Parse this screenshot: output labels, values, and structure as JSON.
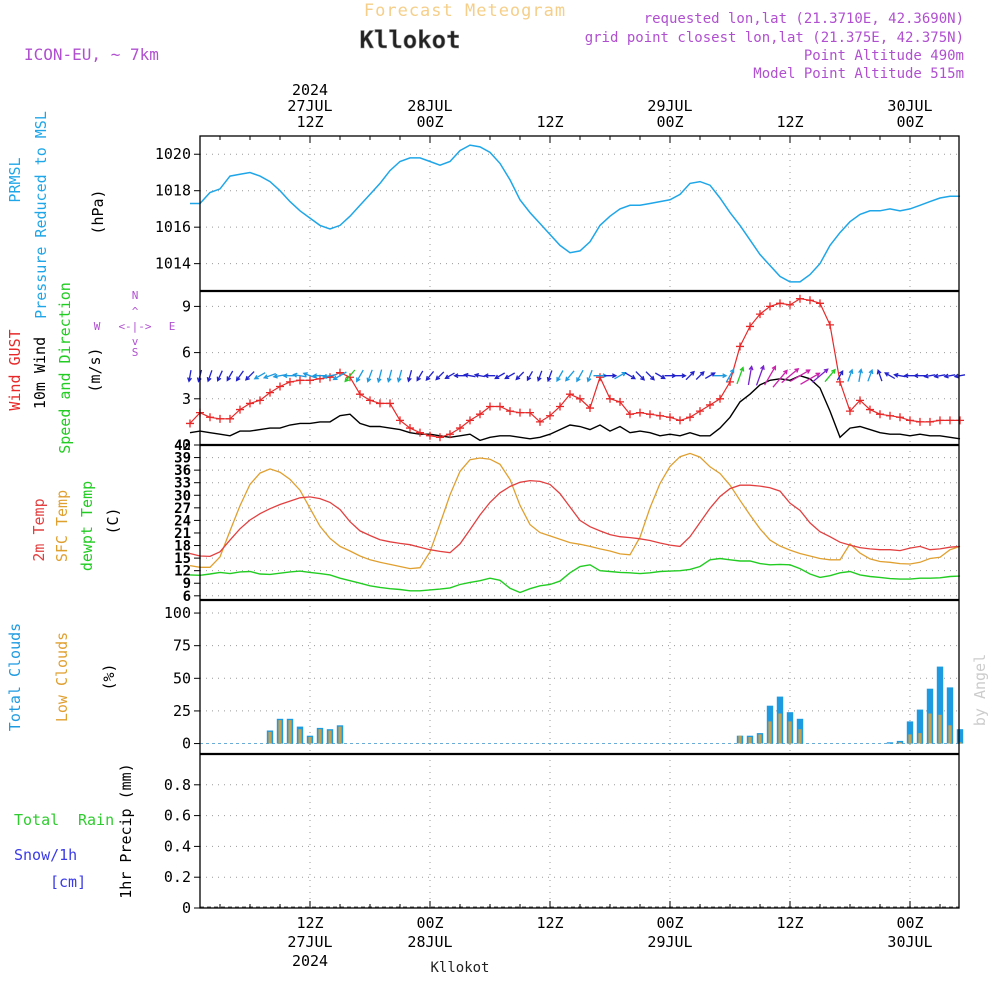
{
  "header": {
    "title": "Forecast Meteogram",
    "location": "Kllokot",
    "model": "ICON-EU, ~ 7km",
    "requested": "requested lon,lat (21.3710E, 42.3690N)",
    "gridpoint": "grid point closest lon,lat (21.375E, 42.375N)",
    "point_alt": "Point Altitude 490m",
    "model_alt": "Model Point Altitude 515m",
    "footer_location": "Kllokot",
    "watermark": "by Angel"
  },
  "time_axis": {
    "start_hour": 0,
    "end_hour": 78,
    "major": [
      {
        "hour": 12,
        "top": [
          "2024",
          "27JUL",
          "12Z"
        ],
        "bottom": [
          "12Z",
          "27JUL",
          "2024"
        ]
      },
      {
        "hour": 24,
        "top": [
          "28JUL",
          "00Z"
        ],
        "bottom": [
          "00Z",
          "28JUL"
        ]
      },
      {
        "hour": 36,
        "top": [
          "12Z"
        ],
        "bottom": [
          "12Z"
        ]
      },
      {
        "hour": 48,
        "top": [
          "29JUL",
          "00Z"
        ],
        "bottom": [
          "00Z",
          "29JUL"
        ]
      },
      {
        "hour": 60,
        "top": [
          "12Z"
        ],
        "bottom": [
          "12Z"
        ]
      },
      {
        "hour": 72,
        "top": [
          "30JUL",
          "00Z"
        ],
        "bottom": [
          "00Z",
          "30JUL"
        ]
      }
    ]
  },
  "legends": {
    "pressure": [
      "PRMSL",
      "Pressure Reduced to MSL"
    ],
    "pressure_unit": "(hPa)",
    "wind_gust": "Wind GUST",
    "wind_10m": "10m Wind",
    "wind_dir": "Speed and Direction",
    "wind_unit": "(m/s)",
    "compass_n": "N",
    "compass_s": "S",
    "compass_w": "W",
    "compass_e": "E",
    "compass_ns": "^|v",
    "compass_we": "<-|->",
    "temp_2m": "2m Temp",
    "temp_sfc": "SFC Temp",
    "temp_dew": "dewpt Temp",
    "temp_unit": "(C)",
    "cloud_total": "Total Clouds",
    "cloud_low": "Low Clouds",
    "cloud_unit": "(%)",
    "rain_total": "Total",
    "rain_rain": "Rain",
    "rain_snow": "Snow/1h",
    "rain_snow_unit": "[cm]",
    "precip_unit": "1hr Precip (mm)"
  },
  "colors": {
    "pressure": "#1ea6e8",
    "gust": "#e82828",
    "wind": "#000000",
    "t2m": "#e24040",
    "tsfc": "#e0a030",
    "tdew": "#22cc22",
    "total_cloud": "#1e9ae0",
    "low_cloud": "#c8a050",
    "rain": "#2ecc2e",
    "snow": "#3a3ae8",
    "header_orange": "#f5cf8a",
    "header_purple": "#b050d0",
    "compass": "#b050d0"
  },
  "chart_data": [
    {
      "type": "line",
      "name": "pressure",
      "ylim": [
        1012.5,
        1021.0
      ],
      "yticks": [
        1014,
        1016,
        1018,
        1020
      ],
      "x": [
        0,
        1,
        2,
        3,
        4,
        5,
        6,
        7,
        8,
        9,
        10,
        11,
        12,
        13,
        14,
        15,
        16,
        17,
        18,
        19,
        20,
        21,
        22,
        23,
        24,
        25,
        26,
        27,
        28,
        29,
        30,
        31,
        32,
        33,
        34,
        35,
        36,
        37,
        38,
        39,
        40,
        41,
        42,
        43,
        44,
        45,
        46,
        47,
        48,
        49,
        50,
        51,
        52,
        53,
        54,
        55,
        56,
        57,
        58,
        59,
        60,
        61,
        62,
        63,
        64,
        65,
        66,
        67,
        68,
        69,
        70,
        71,
        72,
        73,
        74,
        75,
        76,
        77
      ],
      "values": [
        1017.3,
        1017.3,
        1017.9,
        1018.1,
        1018.8,
        1018.9,
        1019.0,
        1018.8,
        1018.5,
        1018.0,
        1017.4,
        1016.9,
        1016.5,
        1016.1,
        1015.9,
        1016.1,
        1016.6,
        1017.2,
        1017.8,
        1018.4,
        1019.1,
        1019.6,
        1019.8,
        1019.8,
        1019.6,
        1019.4,
        1019.6,
        1020.2,
        1020.5,
        1020.4,
        1020.1,
        1019.5,
        1018.6,
        1017.5,
        1016.8,
        1016.2,
        1015.6,
        1015.0,
        1014.6,
        1014.7,
        1015.2,
        1016.1,
        1016.6,
        1017.0,
        1017.2,
        1017.2,
        1017.3,
        1017.4,
        1017.5,
        1017.8,
        1018.4,
        1018.5,
        1018.3,
        1017.6,
        1016.8,
        1016.1,
        1015.3,
        1014.5,
        1013.9,
        1013.3,
        1013.0,
        1013.0,
        1013.4,
        1014.0,
        1015.0,
        1015.7,
        1016.3,
        1016.7,
        1016.9,
        1016.9,
        1017.0,
        1016.9,
        1017.0,
        1017.2,
        1017.4,
        1017.6,
        1017.7,
        1017.7
      ]
    },
    {
      "type": "line",
      "name": "wind",
      "ylim": [
        0,
        10
      ],
      "yticks": [
        0,
        3,
        6,
        9
      ],
      "x": [
        0,
        1,
        2,
        3,
        4,
        5,
        6,
        7,
        8,
        9,
        10,
        11,
        12,
        13,
        14,
        15,
        16,
        17,
        18,
        19,
        20,
        21,
        22,
        23,
        24,
        25,
        26,
        27,
        28,
        29,
        30,
        31,
        32,
        33,
        34,
        35,
        36,
        37,
        38,
        39,
        40,
        41,
        42,
        43,
        44,
        45,
        46,
        47,
        48,
        49,
        50,
        51,
        52,
        53,
        54,
        55,
        56,
        57,
        58,
        59,
        60,
        61,
        62,
        63,
        64,
        65,
        66,
        67,
        68,
        69,
        70,
        71,
        72,
        73,
        74,
        75,
        76,
        77
      ],
      "gust": [
        1.4,
        2.1,
        1.8,
        1.7,
        1.7,
        2.3,
        2.7,
        2.9,
        3.4,
        3.8,
        4.1,
        4.2,
        4.2,
        4.3,
        4.4,
        4.7,
        4.4,
        3.3,
        2.9,
        2.7,
        2.7,
        1.6,
        1.1,
        0.8,
        0.6,
        0.5,
        0.7,
        1.1,
        1.6,
        2.0,
        2.5,
        2.5,
        2.2,
        2.1,
        2.1,
        1.5,
        1.9,
        2.5,
        3.3,
        3.0,
        2.4,
        4.4,
        3.0,
        2.8,
        2.0,
        2.1,
        2.0,
        1.9,
        1.8,
        1.6,
        1.8,
        2.2,
        2.6,
        3.0,
        4.1,
        6.4,
        7.7,
        8.5,
        9.0,
        9.2,
        9.1,
        9.5,
        9.4,
        9.2,
        7.8,
        4.1,
        2.2,
        2.9,
        2.3,
        2.0,
        1.9,
        1.8,
        1.6,
        1.5,
        1.5,
        1.6,
        1.6,
        1.6
      ],
      "wind": [
        0.8,
        0.9,
        0.8,
        0.7,
        0.6,
        0.9,
        0.9,
        1.0,
        1.1,
        1.1,
        1.3,
        1.4,
        1.4,
        1.5,
        1.5,
        1.9,
        2.0,
        1.4,
        1.2,
        1.2,
        1.1,
        1.0,
        0.8,
        0.7,
        0.7,
        0.6,
        0.5,
        0.6,
        0.7,
        0.3,
        0.5,
        0.6,
        0.6,
        0.5,
        0.4,
        0.5,
        0.7,
        1.0,
        1.3,
        1.2,
        1.0,
        1.3,
        0.9,
        1.2,
        0.8,
        0.9,
        0.8,
        0.6,
        0.7,
        0.6,
        0.8,
        0.6,
        0.6,
        1.1,
        1.8,
        2.8,
        3.3,
        3.9,
        4.2,
        4.3,
        4.2,
        4.5,
        4.3,
        3.7,
        2.2,
        0.5,
        1.1,
        1.2,
        1.0,
        0.8,
        0.7,
        0.7,
        0.6,
        0.7,
        0.6,
        0.6,
        0.5,
        0.4
      ],
      "dir_from_deg": [
        10,
        15,
        20,
        25,
        30,
        35,
        45,
        60,
        70,
        80,
        90,
        100,
        110,
        90,
        80,
        60,
        40,
        30,
        20,
        15,
        15,
        15,
        15,
        30,
        40,
        45,
        60,
        90,
        100,
        100,
        90,
        60,
        60,
        45,
        30,
        20,
        20,
        30,
        40,
        30,
        20,
        270,
        270,
        240,
        300,
        315,
        315,
        300,
        270,
        270,
        225,
        225,
        240,
        270,
        210,
        200,
        190,
        200,
        210,
        220,
        230,
        240,
        240,
        230,
        220,
        210,
        200,
        190,
        200,
        160,
        120,
        100,
        90,
        90,
        80,
        80,
        80,
        80
      ]
    },
    {
      "type": "line",
      "name": "temperature",
      "ylim": [
        5,
        42
      ],
      "yticks": [
        6,
        9,
        12,
        15,
        18,
        21,
        24,
        27,
        30,
        33,
        36,
        39,
        42
      ],
      "x": [
        0,
        1,
        2,
        3,
        4,
        5,
        6,
        7,
        8,
        9,
        10,
        11,
        12,
        13,
        14,
        15,
        16,
        17,
        18,
        19,
        20,
        21,
        22,
        23,
        24,
        25,
        26,
        27,
        28,
        29,
        30,
        31,
        32,
        33,
        34,
        35,
        36,
        37,
        38,
        39,
        40,
        41,
        42,
        43,
        44,
        45,
        46,
        47,
        48,
        49,
        50,
        51,
        52,
        53,
        54,
        55,
        56,
        57,
        58,
        59,
        60,
        61,
        62,
        63,
        64,
        65,
        66,
        67,
        68,
        69,
        70,
        71,
        72,
        73,
        74,
        75,
        76,
        77
      ],
      "t2m": [
        16.1,
        15.5,
        15.4,
        16.5,
        19.3,
        22.0,
        24.1,
        25.6,
        26.8,
        27.8,
        28.6,
        29.4,
        29.6,
        29.2,
        28.3,
        26.6,
        23.7,
        21.5,
        20.4,
        19.4,
        18.9,
        18.5,
        18.2,
        17.6,
        17.0,
        16.6,
        16.3,
        18.4,
        21.8,
        25.3,
        28.3,
        30.6,
        32.1,
        33.1,
        33.5,
        33.3,
        32.6,
        30.4,
        27.2,
        24.0,
        22.5,
        21.5,
        20.6,
        20.1,
        19.9,
        19.6,
        19.2,
        18.6,
        18.1,
        17.8,
        20.1,
        23.5,
        26.9,
        29.7,
        31.6,
        32.4,
        32.4,
        32.2,
        31.8,
        31.0,
        28.1,
        26.4,
        23.4,
        21.3,
        20.1,
        18.8,
        18.1,
        17.5,
        17.2,
        17.0,
        17.0,
        16.8,
        17.4,
        17.8,
        17.0,
        17.2,
        17.6,
        17.8
      ],
      "tsfc": [
        13.2,
        12.8,
        12.8,
        15.3,
        21.5,
        27.5,
        32.6,
        35.3,
        36.3,
        35.5,
        33.8,
        31.2,
        26.9,
        22.6,
        19.7,
        17.8,
        16.7,
        15.5,
        14.6,
        14.0,
        13.5,
        13.0,
        12.5,
        12.7,
        16.5,
        23.2,
        30.1,
        35.7,
        38.5,
        38.9,
        38.6,
        37.4,
        33.8,
        27.6,
        23.0,
        21.1,
        20.3,
        19.5,
        18.7,
        18.3,
        17.8,
        17.2,
        16.7,
        16.0,
        15.8,
        20.0,
        27.0,
        32.8,
        36.9,
        39.2,
        40.0,
        39.1,
        36.8,
        35.2,
        32.4,
        28.8,
        25.3,
        22.0,
        19.3,
        17.9,
        16.9,
        16.1,
        15.5,
        14.9,
        14.6,
        14.6,
        18.4,
        16.2,
        14.8,
        14.2,
        14.0,
        13.7,
        13.6,
        14.0,
        14.9,
        15.2,
        17.0,
        17.8
      ],
      "tdew": [
        11.0,
        10.9,
        11.2,
        11.6,
        11.3,
        11.7,
        11.8,
        11.2,
        11.1,
        11.4,
        11.7,
        11.9,
        11.6,
        11.3,
        11.0,
        10.2,
        9.6,
        9.0,
        8.4,
        8.0,
        7.7,
        7.5,
        7.2,
        7.2,
        7.4,
        7.6,
        7.9,
        8.7,
        9.2,
        9.6,
        10.2,
        9.7,
        7.8,
        6.8,
        7.7,
        8.4,
        8.7,
        9.5,
        11.5,
        13.0,
        13.4,
        12.0,
        11.8,
        11.6,
        11.5,
        11.3,
        11.5,
        11.8,
        11.9,
        12.0,
        12.3,
        13.0,
        14.6,
        14.9,
        14.6,
        14.3,
        14.3,
        13.7,
        13.4,
        13.5,
        13.4,
        12.5,
        11.2,
        10.4,
        10.8,
        11.5,
        11.8,
        11.0,
        10.6,
        10.4,
        10.1,
        10.0,
        10.0,
        10.2,
        10.2,
        10.3,
        10.6,
        10.7
      ]
    },
    {
      "type": "bar",
      "name": "clouds",
      "ylim": [
        -8,
        110
      ],
      "yticks": [
        0,
        25,
        50,
        75,
        100
      ],
      "x": [
        8,
        9,
        10,
        11,
        12,
        13,
        14,
        15,
        16,
        55,
        56,
        57,
        58,
        59,
        60,
        61,
        62,
        63,
        70,
        71,
        72,
        73,
        74,
        75,
        76,
        77
      ],
      "total": [
        10,
        19,
        19,
        13,
        6,
        12,
        11,
        14,
        0,
        6,
        6,
        8,
        29,
        36,
        24,
        19,
        0,
        0,
        1,
        2,
        17,
        26,
        42,
        59,
        43,
        11
      ],
      "low": [
        9,
        18,
        18,
        11,
        5,
        11,
        10,
        13,
        0,
        6,
        5,
        7,
        17,
        23,
        17,
        11,
        0,
        0,
        0,
        1,
        7,
        8,
        23,
        22,
        14,
        1
      ]
    },
    {
      "type": "bar",
      "name": "precip",
      "ylim": [
        0,
        1.0
      ],
      "yticks": [
        0,
        0.2,
        0.4,
        0.6,
        0.8
      ],
      "x": [],
      "rain": [],
      "snow": []
    }
  ]
}
